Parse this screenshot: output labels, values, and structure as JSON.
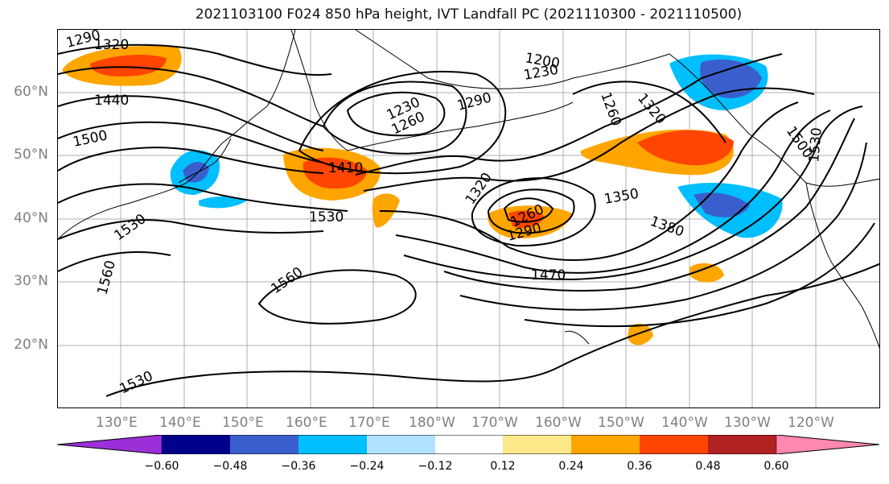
{
  "title": "2021103100 F024 850 hPa height, IVT Landfall PC (2021110300 - 2021110500)",
  "map": {
    "lat_labels": [
      "60°N",
      "50°N",
      "40°N",
      "30°N",
      "20°N"
    ],
    "lon_labels": [
      "130°E",
      "140°E",
      "150°E",
      "160°E",
      "170°E",
      "180°W",
      "170°W",
      "160°W",
      "150°W",
      "140°W",
      "130°W",
      "120°W"
    ],
    "contour_labels": [
      "1290",
      "1320",
      "1440",
      "1500",
      "1410",
      "1530",
      "1530",
      "1560",
      "1560",
      "1530",
      "1230",
      "1260",
      "1290",
      "1200",
      "1230",
      "1320",
      "1260",
      "1290",
      "1320",
      "1350",
      "1380",
      "1470",
      "1500",
      "1530",
      "1260"
    ]
  },
  "colorbar": {
    "colors": [
      "#9b30d9",
      "#00008b",
      "#3a5fcd",
      "#00bfff",
      "#b2e2ff",
      "#ffffff",
      "#ffe88a",
      "#ffa500",
      "#ff4500",
      "#b22222",
      "#ff88b0"
    ],
    "ticks": [
      "−0.60",
      "−0.48",
      "−0.36",
      "−0.24",
      "−0.12",
      "0.12",
      "0.24",
      "0.36",
      "0.48",
      "0.60"
    ]
  }
}
